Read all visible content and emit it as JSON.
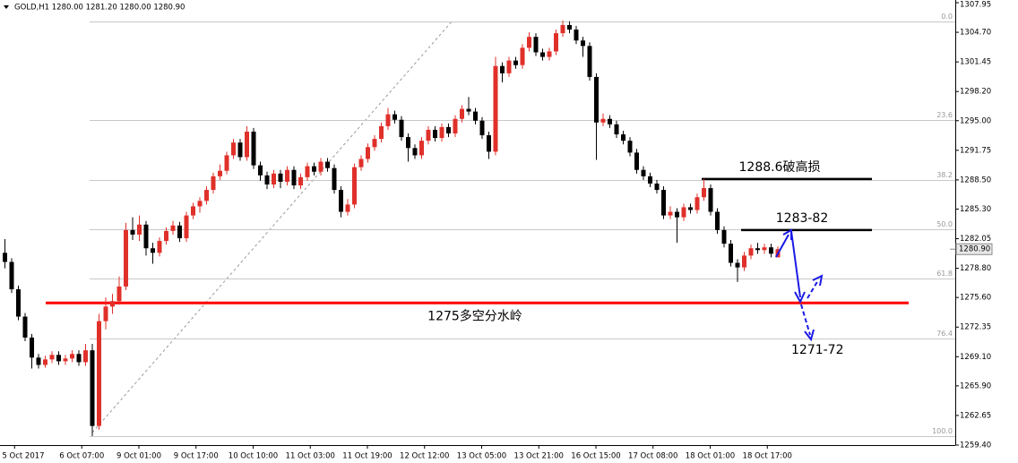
{
  "chart_data": {
    "type": "candlestick",
    "header": "GOLD,H1  1280.00 1281.20 1280.00 1280.90",
    "ylim": [
      1259.4,
      1307.95
    ],
    "yticks": [
      1307.95,
      {
        "value": 1304.7,
        "label": "1304.70"
      },
      1301.45,
      {
        "value": 1298.2,
        "label": "1298.20"
      },
      {
        "value": 1295,
        "label": "1295.00"
      },
      1291.75,
      {
        "value": 1288.5,
        "label": "1288.50"
      },
      {
        "value": 1285.3,
        "label": "1285.30"
      },
      1282.05,
      {
        "value": 1278.8,
        "label": "1278.80"
      },
      {
        "value": 1275.6,
        "label": "1275.60"
      },
      1272.35,
      {
        "value": 1269.1,
        "label": "1269.10"
      },
      {
        "value": 1265.9,
        "label": "1265.90"
      },
      1262.65,
      {
        "value": 1259.4,
        "label": "1259.40"
      }
    ],
    "xticks": [
      {
        "value": 1.5,
        "label": "5 Oct 2017"
      },
      {
        "value": 11.5,
        "label": "6 Oct 07:00"
      },
      {
        "value": 20,
        "label": "9 Oct 01:00"
      },
      {
        "value": 28.5,
        "label": "9 Oct 17:00"
      },
      {
        "value": 37,
        "label": "10 Oct 10:00"
      },
      {
        "value": 45.5,
        "label": "11 Oct 03:00"
      },
      {
        "value": 54,
        "label": "11 Oct 19:00"
      },
      {
        "value": 62.5,
        "label": "12 Oct 12:00"
      },
      {
        "value": 71,
        "label": "13 Oct 05:00"
      },
      {
        "value": 79.5,
        "label": "13 Oct 21:00"
      },
      {
        "value": 88,
        "label": "16 Oct 15:00"
      },
      {
        "value": 96.5,
        "label": "17 Oct 08:00"
      },
      {
        "value": 105,
        "label": "18 Oct 01:00"
      },
      {
        "value": 113.5,
        "label": "18 Oct 17:00"
      }
    ],
    "up_color": "#e0302a",
    "down_color": "#000000",
    "current_price": {
      "value": 1280.9,
      "label": "1280.90"
    },
    "fib_levels": [
      {
        "level": "0.0",
        "price": 1305.9
      },
      {
        "level": "23.6",
        "price": 1295.08
      },
      {
        "level": "38.2",
        "price": 1288.49
      },
      {
        "level": "50.0",
        "price": 1283.08
      },
      {
        "level": "61.8",
        "price": 1277.68
      },
      {
        "level": "76.4",
        "price": 1271.1
      },
      {
        "level": "100.0",
        "price": 1260.38
      }
    ],
    "levels": [
      {
        "label": "1288.6破高损",
        "value": 1288.6,
        "color": "#000000"
      },
      {
        "label": "1283-82",
        "value": 1283,
        "color": "#000000"
      },
      {
        "label": "1275多空分水岭",
        "value": 1275,
        "color": "#ff0000"
      }
    ],
    "target_label": "1271-72",
    "candles": [
      [
        1280.5,
        1282.0,
        1278.8,
        1279.5
      ],
      [
        1279.5,
        1279.9,
        1276.1,
        1276.5
      ],
      [
        1276.5,
        1276.9,
        1273.1,
        1273.5
      ],
      [
        1273.5,
        1273.9,
        1270.8,
        1271.2
      ],
      [
        1271.2,
        1271.6,
        1267.8,
        1269.0
      ],
      [
        1269.0,
        1269.4,
        1267.8,
        1268.2
      ],
      [
        1268.2,
        1269.2,
        1267.9,
        1268.8
      ],
      [
        1268.8,
        1269.7,
        1268.4,
        1269.3
      ],
      [
        1269.3,
        1269.7,
        1268.2,
        1268.6
      ],
      [
        1268.6,
        1269.3,
        1268.2,
        1268.9
      ],
      [
        1268.9,
        1269.8,
        1268.5,
        1269.4
      ],
      [
        1269.4,
        1269.8,
        1268.1,
        1268.5
      ],
      [
        1268.5,
        1270.5,
        1268.1,
        1269.8
      ],
      [
        1269.8,
        1270.5,
        1260.4,
        1261.5
      ],
      [
        1261.5,
        1273.8,
        1261.1,
        1273.0
      ],
      [
        1273.0,
        1275.6,
        1272.1,
        1274.6
      ],
      [
        1274.6,
        1276.0,
        1273.8,
        1275.2
      ],
      [
        1275.2,
        1277.9,
        1274.8,
        1276.8
      ],
      [
        1276.8,
        1283.8,
        1276.4,
        1283.0
      ],
      [
        1283.0,
        1284.4,
        1281.9,
        1282.5
      ],
      [
        1282.5,
        1284.6,
        1281.8,
        1283.6
      ],
      [
        1283.6,
        1284.0,
        1280.2,
        1281.0
      ],
      [
        1281.0,
        1281.6,
        1279.3,
        1280.5
      ],
      [
        1280.5,
        1282.2,
        1280.1,
        1281.8
      ],
      [
        1281.8,
        1283.3,
        1281.4,
        1282.9
      ],
      [
        1282.9,
        1284.0,
        1282.5,
        1283.5
      ],
      [
        1283.5,
        1283.9,
        1281.7,
        1282.1
      ],
      [
        1282.1,
        1285.0,
        1281.7,
        1284.6
      ],
      [
        1284.6,
        1286.0,
        1284.2,
        1285.6
      ],
      [
        1285.6,
        1286.6,
        1284.9,
        1286.2
      ],
      [
        1286.2,
        1287.8,
        1285.8,
        1287.4
      ],
      [
        1287.4,
        1289.3,
        1287.0,
        1288.9
      ],
      [
        1288.9,
        1290.2,
        1288.5,
        1289.5
      ],
      [
        1289.5,
        1291.6,
        1289.1,
        1291.2
      ],
      [
        1291.2,
        1293.0,
        1290.8,
        1292.6
      ],
      [
        1292.6,
        1293.0,
        1290.6,
        1291.0
      ],
      [
        1291.0,
        1294.4,
        1290.6,
        1293.8
      ],
      [
        1293.8,
        1294.2,
        1289.7,
        1290.1
      ],
      [
        1290.1,
        1290.5,
        1288.4,
        1289.0
      ],
      [
        1289.0,
        1289.4,
        1287.5,
        1288.0
      ],
      [
        1288.0,
        1289.6,
        1287.6,
        1289.2
      ],
      [
        1289.2,
        1289.6,
        1287.6,
        1288.3
      ],
      [
        1288.3,
        1290.0,
        1287.9,
        1289.6
      ],
      [
        1289.6,
        1290.0,
        1287.5,
        1287.9
      ],
      [
        1287.9,
        1289.2,
        1287.5,
        1288.8
      ],
      [
        1288.8,
        1290.4,
        1288.4,
        1290.0
      ],
      [
        1290.0,
        1290.4,
        1289.0,
        1289.4
      ],
      [
        1289.4,
        1290.9,
        1289.0,
        1290.5
      ],
      [
        1290.5,
        1290.9,
        1289.4,
        1289.8
      ],
      [
        1289.8,
        1290.2,
        1287.0,
        1287.4
      ],
      [
        1287.4,
        1287.8,
        1284.4,
        1285.0
      ],
      [
        1285.0,
        1286.4,
        1284.6,
        1285.8
      ],
      [
        1285.8,
        1290.3,
        1285.4,
        1289.9
      ],
      [
        1289.9,
        1291.2,
        1289.5,
        1290.8
      ],
      [
        1290.8,
        1292.5,
        1290.4,
        1292.1
      ],
      [
        1292.1,
        1293.4,
        1291.7,
        1293.0
      ],
      [
        1293.0,
        1294.8,
        1292.6,
        1294.4
      ],
      [
        1294.4,
        1296.4,
        1294.0,
        1295.7
      ],
      [
        1295.7,
        1296.1,
        1294.7,
        1295.1
      ],
      [
        1295.1,
        1295.5,
        1292.8,
        1293.2
      ],
      [
        1293.2,
        1293.6,
        1290.5,
        1292.0
      ],
      [
        1292.0,
        1292.4,
        1290.8,
        1291.2
      ],
      [
        1291.2,
        1293.2,
        1290.8,
        1292.8
      ],
      [
        1292.8,
        1294.4,
        1292.4,
        1294.0
      ],
      [
        1294.0,
        1294.4,
        1292.7,
        1293.1
      ],
      [
        1293.1,
        1294.7,
        1292.7,
        1294.3
      ],
      [
        1294.3,
        1294.7,
        1293.2,
        1293.6
      ],
      [
        1293.6,
        1295.6,
        1293.2,
        1295.2
      ],
      [
        1295.2,
        1296.7,
        1294.8,
        1296.3
      ],
      [
        1296.3,
        1297.6,
        1295.6,
        1296.0
      ],
      [
        1296.0,
        1296.4,
        1294.6,
        1295.0
      ],
      [
        1295.0,
        1295.4,
        1293.0,
        1293.4
      ],
      [
        1293.4,
        1293.8,
        1290.8,
        1291.6
      ],
      [
        1291.6,
        1302.0,
        1291.2,
        1301.0
      ],
      [
        1301.0,
        1301.4,
        1299.2,
        1300.2
      ],
      [
        1300.2,
        1302.0,
        1299.8,
        1301.6
      ],
      [
        1301.6,
        1302.0,
        1300.7,
        1301.1
      ],
      [
        1301.1,
        1303.4,
        1300.7,
        1303.0
      ],
      [
        1303.0,
        1304.7,
        1302.6,
        1304.2
      ],
      [
        1304.2,
        1304.6,
        1302.1,
        1302.5
      ],
      [
        1302.5,
        1302.9,
        1301.6,
        1302.0
      ],
      [
        1302.0,
        1303.0,
        1301.6,
        1302.6
      ],
      [
        1302.6,
        1305.0,
        1302.2,
        1304.6
      ],
      [
        1304.6,
        1306.0,
        1304.2,
        1305.5
      ],
      [
        1305.5,
        1305.9,
        1304.6,
        1305.0
      ],
      [
        1305.0,
        1305.4,
        1303.4,
        1303.8
      ],
      [
        1303.8,
        1304.2,
        1302.0,
        1303.2
      ],
      [
        1303.2,
        1303.6,
        1299.4,
        1299.8
      ],
      [
        1299.8,
        1300.2,
        1290.7,
        1294.8
      ],
      [
        1294.8,
        1295.8,
        1294.4,
        1295.2
      ],
      [
        1295.2,
        1295.6,
        1294.2,
        1294.6
      ],
      [
        1294.6,
        1295.0,
        1293.1,
        1293.5
      ],
      [
        1293.5,
        1293.9,
        1292.4,
        1292.8
      ],
      [
        1292.8,
        1293.2,
        1291.1,
        1291.5
      ],
      [
        1291.5,
        1291.9,
        1289.2,
        1289.6
      ],
      [
        1289.6,
        1290.0,
        1288.5,
        1288.9
      ],
      [
        1288.9,
        1289.3,
        1287.7,
        1288.1
      ],
      [
        1288.1,
        1288.5,
        1287.0,
        1287.4
      ],
      [
        1287.4,
        1287.8,
        1284.2,
        1284.6
      ],
      [
        1284.6,
        1285.6,
        1284.2,
        1285.0
      ],
      [
        1285.0,
        1285.4,
        1281.6,
        1284.4
      ],
      [
        1284.4,
        1285.9,
        1284.0,
        1285.5
      ],
      [
        1285.5,
        1285.9,
        1284.8,
        1285.2
      ],
      [
        1285.2,
        1287.0,
        1284.8,
        1286.6
      ],
      [
        1286.6,
        1288.6,
        1286.2,
        1287.6
      ],
      [
        1287.6,
        1288.0,
        1284.6,
        1285.0
      ],
      [
        1285.0,
        1285.4,
        1282.6,
        1283.0
      ],
      [
        1283.0,
        1283.4,
        1281.1,
        1281.5
      ],
      [
        1281.5,
        1281.9,
        1279.0,
        1279.4
      ],
      [
        1279.4,
        1279.8,
        1277.3,
        1278.9
      ],
      [
        1278.9,
        1280.6,
        1278.5,
        1280.2
      ],
      [
        1280.2,
        1281.4,
        1279.8,
        1281.0
      ],
      [
        1281.0,
        1281.6,
        1280.4,
        1280.8
      ],
      [
        1280.8,
        1281.5,
        1280.4,
        1281.1
      ],
      [
        1281.1,
        1281.5,
        1280.0,
        1280.4
      ],
      [
        1280.0,
        1281.2,
        1280.0,
        1280.9
      ]
    ]
  }
}
